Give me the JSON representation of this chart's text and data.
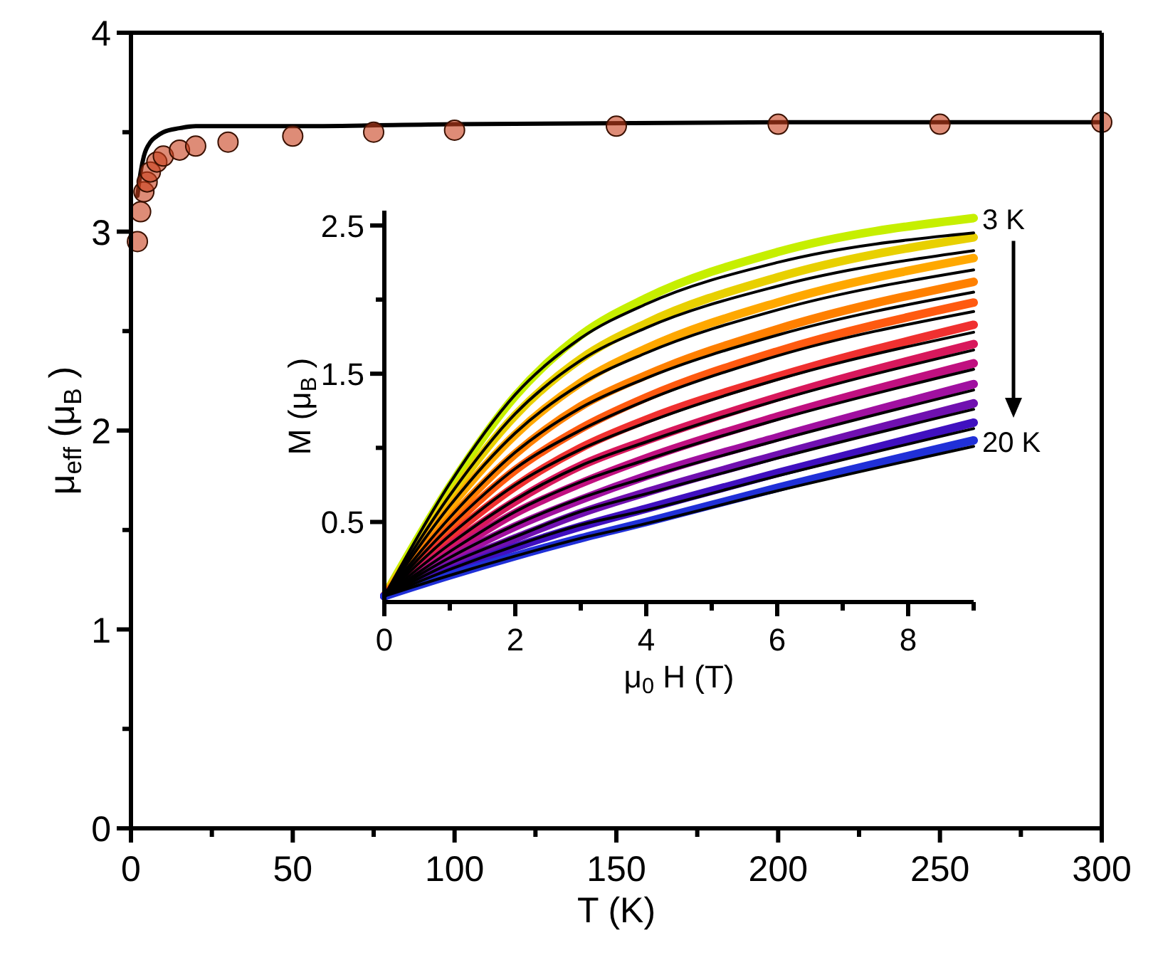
{
  "chart_data": [
    {
      "type": "scatter",
      "xlabel": "T (K)",
      "ylabel": "μ$_{eff}$ (μ$_{B}$)",
      "xlim": [
        0,
        300
      ],
      "ylim": [
        0,
        4
      ],
      "xticks": [
        0,
        {
          "value": 25,
          "label": null
        },
        50,
        {
          "value": 75,
          "label": null
        },
        100,
        {
          "value": 125,
          "label": null
        },
        150,
        {
          "value": 175,
          "label": null
        },
        200,
        {
          "value": 225,
          "label": null
        },
        250,
        {
          "value": 275,
          "label": null
        },
        300
      ],
      "yticks": [
        0,
        {
          "value": 0.5,
          "label": null
        },
        1,
        {
          "value": 1.5,
          "label": null
        },
        2,
        {
          "value": 2.5,
          "label": null
        },
        3,
        {
          "value": 3.5,
          "label": null
        },
        4
      ],
      "series": [
        {
          "marker": "circle",
          "color": "#c8401c",
          "x": [
            2,
            3,
            4,
            5,
            6,
            8,
            10,
            15,
            20,
            30,
            50,
            75,
            100,
            150,
            200,
            250,
            300
          ],
          "values": [
            2.95,
            3.1,
            3.2,
            3.25,
            3.3,
            3.35,
            3.38,
            3.41,
            3.43,
            3.45,
            3.48,
            3.5,
            3.51,
            3.53,
            3.54,
            3.54,
            3.55
          ]
        },
        {
          "type": "line",
          "color": "#000000",
          "x": [
            2,
            3,
            4,
            6,
            8,
            10,
            15,
            20,
            30,
            50,
            100,
            200,
            300
          ],
          "values": [
            3.18,
            3.3,
            3.38,
            3.45,
            3.48,
            3.5,
            3.52,
            3.53,
            3.53,
            3.53,
            3.54,
            3.55,
            3.55
          ]
        }
      ]
    },
    {
      "type": "line",
      "xlabel": "μ$_{0}$H (T)",
      "ylabel": "M (μ$_{B}$)",
      "xlim": [
        0,
        9
      ],
      "ylim": [
        -0.04,
        2.6
      ],
      "xticks": [
        0,
        {
          "value": 1,
          "label": null
        },
        2,
        {
          "value": 3,
          "label": null
        },
        4,
        {
          "value": 5,
          "label": null
        },
        6,
        {
          "value": 7,
          "label": null
        },
        8,
        {
          "value": 9,
          "label": null
        }
      ],
      "yticks": [
        0.5,
        {
          "value": 1,
          "label": null
        },
        1.5,
        {
          "value": 2,
          "label": null
        },
        2.5
      ],
      "annotations": [
        "3 K",
        "20 K"
      ],
      "x": [
        0,
        1,
        2,
        3,
        4,
        6,
        9
      ],
      "series": [
        {
          "color": "#c6ef00",
          "values": [
            0,
            0.74,
            1.35,
            1.76,
            2.01,
            2.32,
            2.55
          ]
        },
        {
          "color": "#e8d000",
          "values": [
            0,
            0.67,
            1.22,
            1.6,
            1.84,
            2.15,
            2.42
          ]
        },
        {
          "color": "#ffa800",
          "values": [
            0,
            0.6,
            1.09,
            1.44,
            1.67,
            1.98,
            2.28
          ]
        },
        {
          "color": "#ff8000",
          "values": [
            0,
            0.52,
            0.96,
            1.28,
            1.49,
            1.8,
            2.12
          ]
        },
        {
          "color": "#ff5a10",
          "values": [
            0,
            0.46,
            0.85,
            1.13,
            1.34,
            1.65,
            1.98
          ]
        },
        {
          "color": "#f03030",
          "values": [
            0,
            0.4,
            0.74,
            1.0,
            1.19,
            1.48,
            1.83
          ]
        },
        {
          "color": "#d8185c",
          "values": [
            0,
            0.34,
            0.64,
            0.88,
            1.05,
            1.34,
            1.7
          ]
        },
        {
          "color": "#c01080",
          "values": [
            0,
            0.29,
            0.56,
            0.76,
            0.93,
            1.21,
            1.57
          ]
        },
        {
          "color": "#a010a0",
          "values": [
            0,
            0.25,
            0.47,
            0.65,
            0.81,
            1.07,
            1.43
          ]
        },
        {
          "color": "#7010b0",
          "values": [
            0,
            0.21,
            0.39,
            0.56,
            0.7,
            0.95,
            1.3
          ]
        },
        {
          "color": "#4010c0",
          "values": [
            0,
            0.17,
            0.33,
            0.47,
            0.59,
            0.83,
            1.17
          ]
        },
        {
          "color": "#2030d8",
          "values": [
            0,
            0.14,
            0.27,
            0.39,
            0.5,
            0.73,
            1.05
          ]
        },
        {
          "color": "#000000",
          "values": [
            0,
            0.76,
            1.36,
            1.74,
            1.97,
            2.25,
            2.45
          ]
        },
        {
          "color": "#000000",
          "values": [
            0,
            0.68,
            1.23,
            1.59,
            1.81,
            2.09,
            2.33
          ]
        },
        {
          "color": "#000000",
          "values": [
            0,
            0.61,
            1.1,
            1.43,
            1.64,
            1.93,
            2.2
          ]
        },
        {
          "color": "#000000",
          "values": [
            0,
            0.53,
            0.97,
            1.27,
            1.47,
            1.76,
            2.05
          ]
        },
        {
          "color": "#000000",
          "values": [
            0,
            0.47,
            0.86,
            1.12,
            1.32,
            1.62,
            1.92
          ]
        },
        {
          "color": "#000000",
          "values": [
            0,
            0.41,
            0.75,
            0.99,
            1.17,
            1.46,
            1.78
          ]
        },
        {
          "color": "#000000",
          "values": [
            0,
            0.35,
            0.65,
            0.88,
            1.04,
            1.32,
            1.66
          ]
        },
        {
          "color": "#000000",
          "values": [
            0,
            0.3,
            0.57,
            0.77,
            0.92,
            1.19,
            1.53
          ]
        },
        {
          "color": "#000000",
          "values": [
            0,
            0.26,
            0.48,
            0.66,
            0.8,
            1.05,
            1.39
          ]
        },
        {
          "color": "#000000",
          "values": [
            0,
            0.22,
            0.4,
            0.57,
            0.69,
            0.93,
            1.26
          ]
        },
        {
          "color": "#000000",
          "values": [
            0,
            0.18,
            0.34,
            0.48,
            0.58,
            0.81,
            1.13
          ]
        },
        {
          "color": "#000000",
          "values": [
            0,
            0.14,
            0.27,
            0.39,
            0.49,
            0.71,
            1.01
          ]
        }
      ]
    }
  ]
}
